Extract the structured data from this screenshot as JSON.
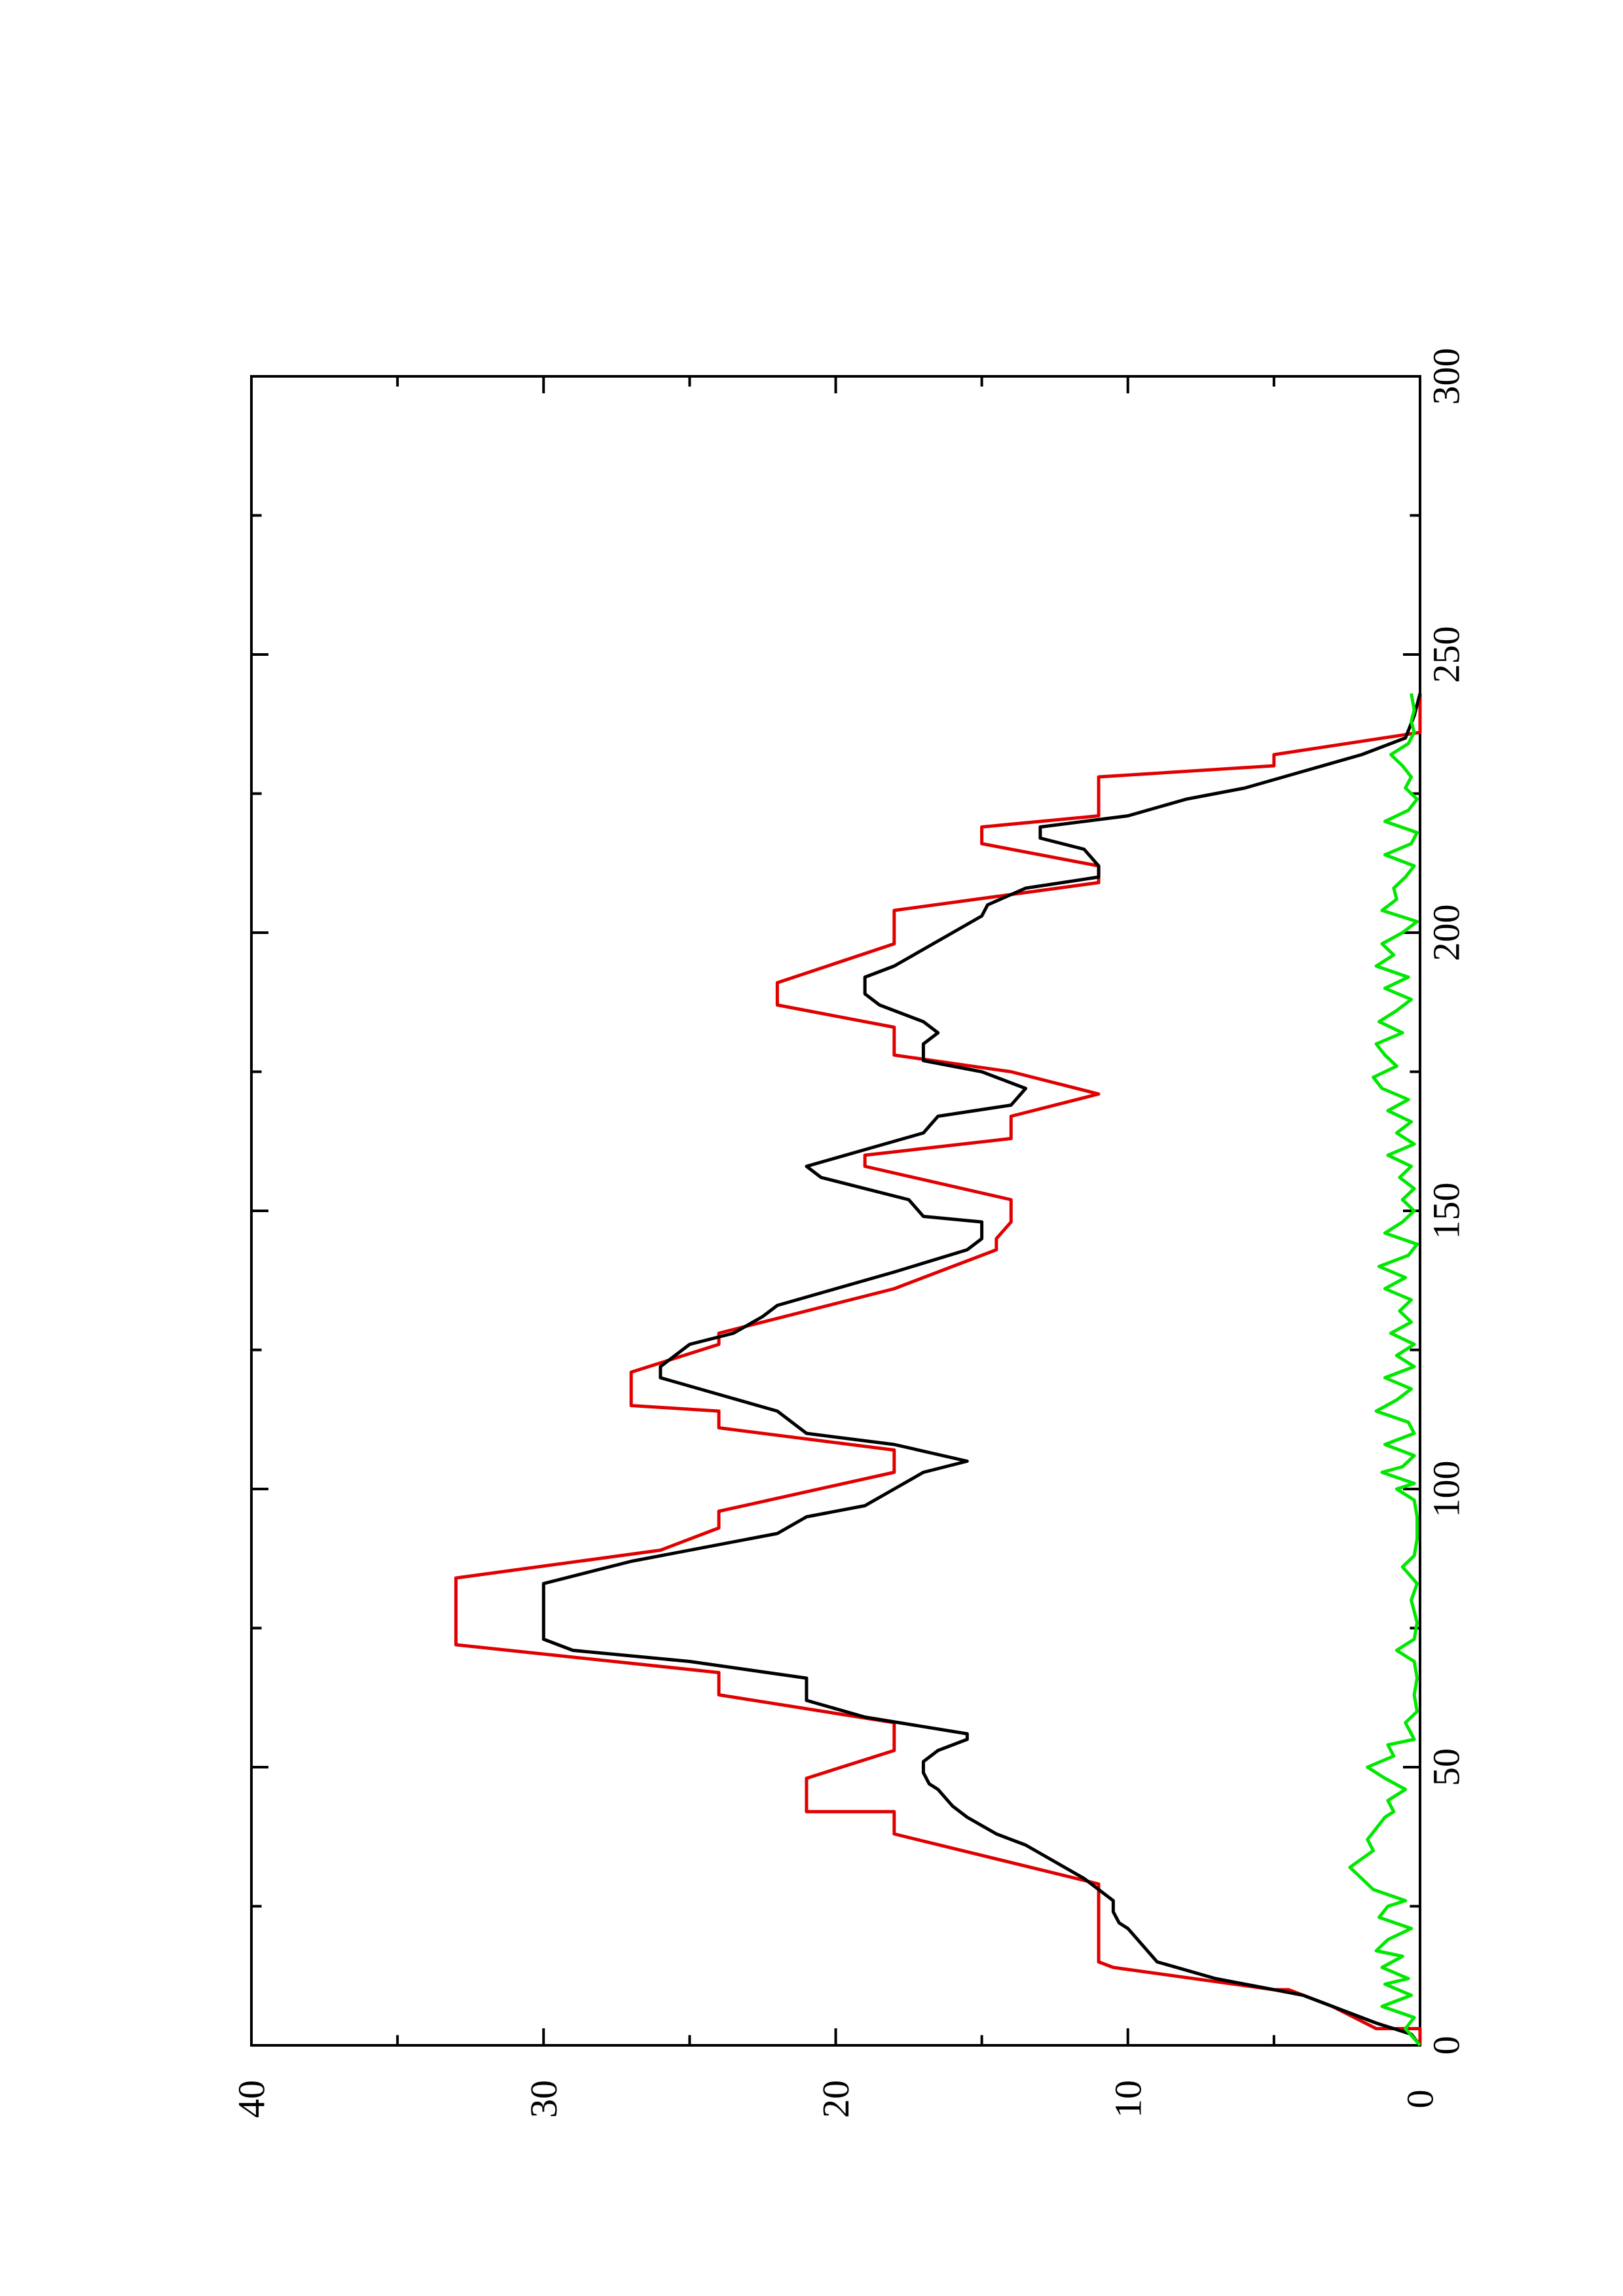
{
  "chart_data": {
    "type": "line",
    "orientation": "rotated-90-ccw",
    "title": "",
    "xlabel": "",
    "ylabel": "",
    "xlim": [
      0,
      300
    ],
    "ylim": [
      0,
      40
    ],
    "x_ticks": [
      0,
      50,
      100,
      150,
      200,
      250,
      300
    ],
    "x_tick_labels": [
      "0",
      "50",
      "100",
      "150",
      "200",
      "250",
      "300"
    ],
    "y_ticks": [
      0,
      10,
      20,
      30,
      40
    ],
    "y_tick_labels": [
      "0",
      "10",
      "20",
      "30",
      "40"
    ],
    "grid": false,
    "legend": "none",
    "series": [
      {
        "color": "#e00000",
        "points": [
          [
            0,
            0
          ],
          [
            3,
            0
          ],
          [
            3,
            1.5
          ],
          [
            7,
            3
          ],
          [
            10,
            4.5
          ],
          [
            10,
            5
          ],
          [
            14,
            10.5
          ],
          [
            15,
            11
          ],
          [
            29,
            11
          ],
          [
            38,
            18
          ],
          [
            42,
            18
          ],
          [
            42,
            21
          ],
          [
            48,
            21
          ],
          [
            53,
            18
          ],
          [
            58,
            18
          ],
          [
            63,
            24
          ],
          [
            67,
            24
          ],
          [
            72,
            33
          ],
          [
            84,
            33
          ],
          [
            89,
            26
          ],
          [
            93,
            24
          ],
          [
            96,
            24
          ],
          [
            103,
            18
          ],
          [
            107,
            18
          ],
          [
            111,
            24
          ],
          [
            114,
            24
          ],
          [
            115,
            27
          ],
          [
            118,
            27
          ],
          [
            121,
            27
          ],
          [
            126,
            24
          ],
          [
            128,
            24
          ],
          [
            136,
            18
          ],
          [
            143,
            14.5
          ],
          [
            145,
            14.5
          ],
          [
            148,
            14
          ],
          [
            152,
            14
          ],
          [
            158,
            19
          ],
          [
            160,
            19
          ],
          [
            163,
            14
          ],
          [
            167,
            14
          ],
          [
            171,
            11
          ],
          [
            175,
            14
          ],
          [
            178,
            18
          ],
          [
            183,
            18
          ],
          [
            187,
            22
          ],
          [
            191,
            22
          ],
          [
            198,
            18
          ],
          [
            204,
            18
          ],
          [
            209,
            11
          ],
          [
            212,
            11
          ],
          [
            216,
            15
          ],
          [
            219,
            15
          ],
          [
            221,
            11
          ],
          [
            228,
            11
          ],
          [
            230,
            5
          ],
          [
            232,
            5
          ],
          [
            236,
            0
          ],
          [
            243,
            0
          ]
        ]
      },
      {
        "color": "#000000",
        "points": [
          [
            0,
            0
          ],
          [
            2,
            0.3
          ],
          [
            4,
            1.5
          ],
          [
            6,
            2.5
          ],
          [
            8,
            3.5
          ],
          [
            9,
            4
          ],
          [
            12,
            7
          ],
          [
            15,
            9
          ],
          [
            18,
            9.5
          ],
          [
            21,
            10
          ],
          [
            22,
            10.3
          ],
          [
            24,
            10.5
          ],
          [
            26,
            10.5
          ],
          [
            28,
            11
          ],
          [
            30,
            11.5
          ],
          [
            33,
            12.5
          ],
          [
            36,
            13.5
          ],
          [
            38,
            14.5
          ],
          [
            41,
            15.5
          ],
          [
            43,
            16
          ],
          [
            46,
            16.5
          ],
          [
            47,
            16.8
          ],
          [
            49,
            17
          ],
          [
            51,
            17
          ],
          [
            53,
            16.5
          ],
          [
            55,
            15.5
          ],
          [
            56,
            15.5
          ],
          [
            59,
            19
          ],
          [
            62,
            21
          ],
          [
            66,
            21
          ],
          [
            69,
            25
          ],
          [
            71,
            29
          ],
          [
            73,
            30
          ],
          [
            80,
            30
          ],
          [
            83,
            30
          ],
          [
            87,
            27
          ],
          [
            92,
            22
          ],
          [
            95,
            21
          ],
          [
            97,
            19
          ],
          [
            100,
            18
          ],
          [
            103,
            17
          ],
          [
            105,
            15.5
          ],
          [
            108,
            18
          ],
          [
            110,
            21
          ],
          [
            114,
            22
          ],
          [
            117,
            24
          ],
          [
            120,
            26
          ],
          [
            122,
            26
          ],
          [
            124,
            25.5
          ],
          [
            126,
            25
          ],
          [
            128,
            23.5
          ],
          [
            131,
            22.5
          ],
          [
            133,
            22
          ],
          [
            136,
            20
          ],
          [
            139,
            18
          ],
          [
            143,
            15.5
          ],
          [
            145,
            15
          ],
          [
            148,
            15
          ],
          [
            149,
            17
          ],
          [
            152,
            17.5
          ],
          [
            156,
            20.5
          ],
          [
            158,
            21
          ],
          [
            161,
            19
          ],
          [
            164,
            17
          ],
          [
            167,
            16.5
          ],
          [
            169,
            14
          ],
          [
            172,
            13.5
          ],
          [
            175,
            15
          ],
          [
            177,
            17
          ],
          [
            180,
            17
          ],
          [
            182,
            16.5
          ],
          [
            184,
            17
          ],
          [
            187,
            18.5
          ],
          [
            189,
            19
          ],
          [
            192,
            19
          ],
          [
            194,
            18
          ],
          [
            197,
            17
          ],
          [
            200,
            16
          ],
          [
            203,
            15
          ],
          [
            205,
            14.8
          ],
          [
            208,
            13.5
          ],
          [
            210,
            11
          ],
          [
            212,
            11
          ],
          [
            215,
            11.5
          ],
          [
            217,
            13
          ],
          [
            219,
            13
          ],
          [
            221,
            10
          ],
          [
            224,
            8
          ],
          [
            226,
            6
          ],
          [
            229,
            4
          ],
          [
            232,
            2
          ],
          [
            235,
            0.5
          ],
          [
            239,
            0.2
          ],
          [
            243,
            0
          ]
        ]
      },
      {
        "color": "#00e800",
        "points": [
          [
            0,
            0
          ],
          [
            3,
            0.5
          ],
          [
            5,
            0.2
          ],
          [
            7,
            1.3
          ],
          [
            9,
            0.3
          ],
          [
            11,
            1.2
          ],
          [
            12,
            0.4
          ],
          [
            14,
            1.3
          ],
          [
            16,
            0.6
          ],
          [
            17,
            1.5
          ],
          [
            19,
            1.1
          ],
          [
            21,
            0.3
          ],
          [
            23,
            1.4
          ],
          [
            25,
            1.1
          ],
          [
            26,
            0.5
          ],
          [
            28,
            1.6
          ],
          [
            30,
            2
          ],
          [
            32,
            2.4
          ],
          [
            35,
            1.6
          ],
          [
            37,
            1.8
          ],
          [
            39,
            1.5
          ],
          [
            41,
            1.2
          ],
          [
            42,
            0.9
          ],
          [
            44,
            1.1
          ],
          [
            46,
            0.5
          ],
          [
            48,
            1.2
          ],
          [
            50,
            1.8
          ],
          [
            52,
            0.9
          ],
          [
            54,
            1.1
          ],
          [
            55,
            0.2
          ],
          [
            58,
            0.5
          ],
          [
            60,
            0.1
          ],
          [
            63,
            0.2
          ],
          [
            66,
            0.1
          ],
          [
            69,
            0.2
          ],
          [
            71,
            0.8
          ],
          [
            73,
            0.2
          ],
          [
            76,
            0.1
          ],
          [
            80,
            0.3
          ],
          [
            83,
            0.1
          ],
          [
            86,
            0.6
          ],
          [
            88,
            0.2
          ],
          [
            91,
            0.1
          ],
          [
            95,
            0.1
          ],
          [
            98,
            0.2
          ],
          [
            100,
            0.8
          ],
          [
            101,
            0.2
          ],
          [
            103,
            1.3
          ],
          [
            104,
            0.6
          ],
          [
            106,
            0.2
          ],
          [
            108,
            1.2
          ],
          [
            110,
            0.2
          ],
          [
            112,
            0.4
          ],
          [
            114,
            1.5
          ],
          [
            116,
            0.8
          ],
          [
            118,
            0.3
          ],
          [
            120,
            1.2
          ],
          [
            122,
            0.2
          ],
          [
            124,
            0.8
          ],
          [
            126,
            0.2
          ],
          [
            128,
            1
          ],
          [
            130,
            0.3
          ],
          [
            132,
            0.7
          ],
          [
            134,
            0.3
          ],
          [
            136,
            1.2
          ],
          [
            138,
            0.5
          ],
          [
            140,
            1.4
          ],
          [
            142,
            0.4
          ],
          [
            144,
            0.1
          ],
          [
            146,
            1.2
          ],
          [
            148,
            0.6
          ],
          [
            150,
            0.2
          ],
          [
            152,
            0.6
          ],
          [
            154,
            0.2
          ],
          [
            156,
            0.7
          ],
          [
            158,
            0.3
          ],
          [
            160,
            1.1
          ],
          [
            162,
            0.2
          ],
          [
            164,
            0.8
          ],
          [
            166,
            0.3
          ],
          [
            168,
            1.1
          ],
          [
            170,
            0.4
          ],
          [
            172,
            1.3
          ],
          [
            174,
            1.6
          ],
          [
            176,
            0.8
          ],
          [
            178,
            1.2
          ],
          [
            180,
            1.5
          ],
          [
            182,
            0.6
          ],
          [
            184,
            1.4
          ],
          [
            186,
            0.8
          ],
          [
            188,
            0.3
          ],
          [
            190,
            1.2
          ],
          [
            192,
            0.4
          ],
          [
            194,
            1.5
          ],
          [
            196,
            0.9
          ],
          [
            198,
            1.3
          ],
          [
            200,
            0.6
          ],
          [
            202,
            0.1
          ],
          [
            204,
            1.3
          ],
          [
            206,
            0.8
          ],
          [
            208,
            0.9
          ],
          [
            210,
            0.5
          ],
          [
            212,
            0.2
          ],
          [
            214,
            1.2
          ],
          [
            216,
            0.3
          ],
          [
            218,
            0.1
          ],
          [
            220,
            1.2
          ],
          [
            222,
            0.4
          ],
          [
            224,
            0.1
          ],
          [
            226,
            0.5
          ],
          [
            228,
            0.3
          ],
          [
            230,
            0.6
          ],
          [
            232,
            1
          ],
          [
            234,
            0.4
          ],
          [
            236,
            0.2
          ],
          [
            238,
            0.3
          ],
          [
            240,
            0.2
          ],
          [
            243,
            0.3
          ]
        ]
      }
    ]
  }
}
